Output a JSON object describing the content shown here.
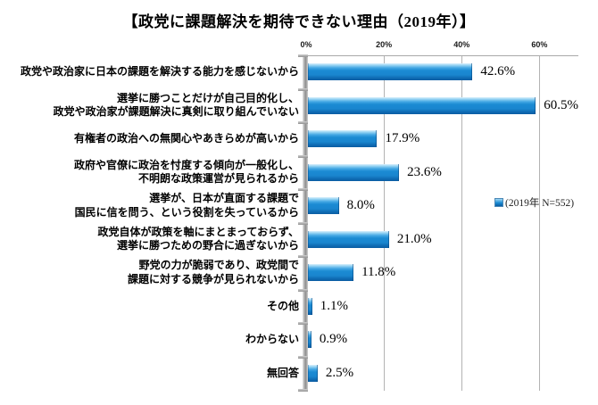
{
  "title": "【政党に課題解決を期待できない理由（2019年）】",
  "legend": {
    "marker": "blue-square-icon",
    "label": "(2019年 N=552)"
  },
  "colors": {
    "bar_main": "#1b8bd3",
    "bar_highlight": "#9ed7f4",
    "bar_shadow": "#0a5ca2",
    "gridline": "#b3b3b3",
    "axis": "#9c9c9c"
  },
  "chart_data": {
    "type": "bar",
    "orientation": "horizontal",
    "title": "【政党に課題解決を期待できない理由（2019年）】",
    "categories": [
      "政党や政治家に日本の課題を解決する能力を感じないから",
      "選挙に勝つことだけが自己目的化し、\n政党や政治家が課題解決に真剣に取り組んでいない",
      "有権者の政治への無関心やあきらめが高いから",
      "政府や官僚に政治を忖度する傾向が一般化し、\n不明朗な政策運営が見られるから",
      "選挙が、日本が直面する課題で\n国民に信を問う、という役割を失っているから",
      "政党自体が政策を軸にまとまっておらず、\n選挙に勝つための野合に過ぎないから",
      "野党の力が脆弱であり、政党間で\n課題に対する競争が見られないから",
      "その他",
      "わからない",
      "無回答"
    ],
    "values": [
      42.6,
      60.5,
      17.9,
      23.6,
      8.0,
      21.0,
      11.8,
      1.1,
      0.9,
      2.5
    ],
    "value_labels": [
      "42.6%",
      "60.5%",
      "17.9%",
      "23.6%",
      "8.0%",
      "21.0%",
      "11.8%",
      "1.1%",
      "0.9%",
      "2.5%"
    ],
    "x_ticks": [
      "0%",
      "20%",
      "40%",
      "60%"
    ],
    "x_tick_values": [
      0,
      20,
      40,
      60
    ],
    "xlim": [
      0,
      70
    ],
    "grid": true,
    "legend_entries": [
      "(2019年 N=552)"
    ]
  }
}
